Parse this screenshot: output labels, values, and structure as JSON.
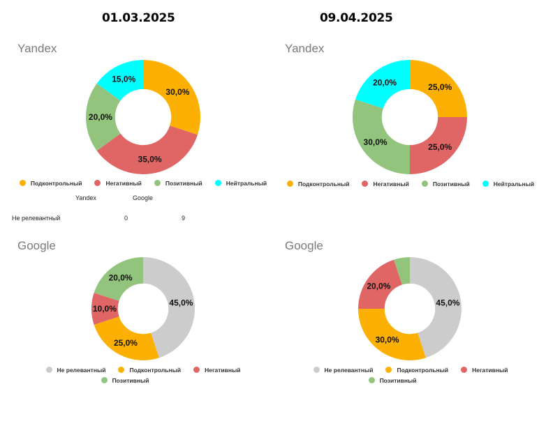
{
  "headers": {
    "left_date": "01.03.2025",
    "right_date": "09.04.2025"
  },
  "colors": {
    "Не релевантный": "#cccccc",
    "Подконтрольный": "#fbb003",
    "Негативный": "#e06666",
    "Позитивный": "#93c47d",
    "Нейтральный": "#00ffff"
  },
  "mini_table": {
    "col1": "Yandex",
    "col2": "Google",
    "row_label": "Не релевантный",
    "val1": "0",
    "val2": "9"
  },
  "legends": {
    "yandex": [
      "Подконтрольный",
      "Негативный",
      "Позитивный",
      "Нейтральный"
    ],
    "google_row1": [
      "Не релевантный",
      "Подконтрольный",
      "Негативный"
    ],
    "google_row2": [
      "Позитивный"
    ]
  },
  "chart_data": [
    {
      "type": "pie",
      "title": "Yandex",
      "date": "01.03.2025",
      "categories": [
        "Подконтрольный",
        "Негативный",
        "Позитивный",
        "Нейтральный"
      ],
      "values": [
        30,
        35,
        20,
        15
      ],
      "labels": [
        "30,0%",
        "35,0%",
        "20,0%",
        "15,0%"
      ]
    },
    {
      "type": "pie",
      "title": "Yandex",
      "date": "09.04.2025",
      "categories": [
        "Подконтрольный",
        "Негативный",
        "Позитивный",
        "Нейтральный"
      ],
      "values": [
        25,
        25,
        30,
        20
      ],
      "labels": [
        "25,0%",
        "25,0%",
        "30,0%",
        "20,0%"
      ]
    },
    {
      "type": "pie",
      "title": "Google",
      "date": "01.03.2025",
      "categories": [
        "Не релевантный",
        "Подконтрольный",
        "Негативный",
        "Позитивный"
      ],
      "values": [
        45,
        25,
        10,
        20
      ],
      "labels": [
        "45,0%",
        "25,0%",
        "10,0%",
        "20,0%"
      ]
    },
    {
      "type": "pie",
      "title": "Google",
      "date": "09.04.2025",
      "categories": [
        "Не релевантный",
        "Подконтрольный",
        "Негативный",
        "Позитивный"
      ],
      "values": [
        45,
        30,
        20,
        5
      ],
      "labels": [
        "45,0%",
        "30,0%",
        "20,0%",
        ""
      ]
    }
  ]
}
